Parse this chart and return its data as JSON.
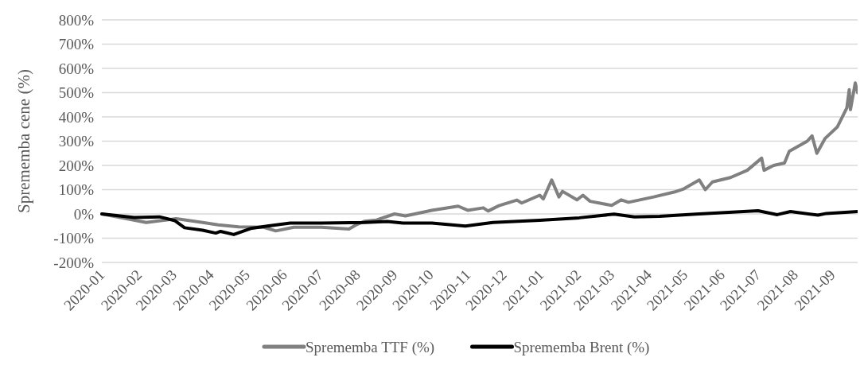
{
  "chart_data": {
    "type": "line",
    "ylabel": "Sprememba cene (%)",
    "xlim": [
      "2020-01-01",
      "2021-09-22"
    ],
    "xticks": [
      "2020-01",
      "2020-02",
      "2020-03",
      "2020-04",
      "2020-05",
      "2020-06",
      "2020-07",
      "2020-08",
      "2020-09",
      "2020-10",
      "2020-11",
      "2020-12",
      "2021-01",
      "2021-02",
      "2021-03",
      "2021-04",
      "2021-05",
      "2021-06",
      "2021-07",
      "2021-08",
      "2021-09"
    ],
    "ylim": [
      -200,
      800
    ],
    "yticks": [
      {
        "value": -200,
        "label": "-200%"
      },
      {
        "value": -100,
        "label": "-100%"
      },
      {
        "value": 0,
        "label": "0%"
      },
      {
        "value": 100,
        "label": "100%"
      },
      {
        "value": 200,
        "label": "200%"
      },
      {
        "value": 300,
        "label": "300%"
      },
      {
        "value": 400,
        "label": "400%"
      },
      {
        "value": 500,
        "label": "500%"
      },
      {
        "value": 600,
        "label": "600%"
      },
      {
        "value": 700,
        "label": "700%"
      },
      {
        "value": 800,
        "label": "800%"
      }
    ],
    "grid": "y",
    "legend": "bottom",
    "line_style": "solid",
    "marker": "none",
    "series": [
      {
        "name": "Sprememba TTF (%)",
        "color": "#808080",
        "x": [
          "2020-01-01",
          "2020-02-07",
          "2020-03-03",
          "2020-03-25",
          "2020-04-07",
          "2020-04-24",
          "2020-05-15",
          "2020-05-25",
          "2020-06-09",
          "2020-07-02",
          "2020-07-25",
          "2020-07-31",
          "2020-08-07",
          "2020-08-17",
          "2020-09-01",
          "2020-09-10",
          "2020-09-18",
          "2020-10-02",
          "2020-10-24",
          "2020-11-01",
          "2020-11-14",
          "2020-11-18",
          "2020-11-27",
          "2020-12-12",
          "2020-12-16",
          "2020-12-31",
          "2021-01-03",
          "2021-01-10",
          "2021-01-16",
          "2021-01-19",
          "2021-01-31",
          "2021-02-05",
          "2021-02-11",
          "2021-03-01",
          "2021-03-09",
          "2021-03-15",
          "2021-04-05",
          "2021-04-22",
          "2021-04-30",
          "2021-05-13",
          "2021-05-18",
          "2021-05-24",
          "2021-06-08",
          "2021-06-22",
          "2021-07-04",
          "2021-07-06",
          "2021-07-14",
          "2021-07-23",
          "2021-07-27",
          "2021-08-11",
          "2021-08-15",
          "2021-08-19",
          "2021-08-26",
          "2021-09-05",
          "2021-09-13",
          "2021-09-15",
          "2021-09-16",
          "2021-09-20",
          "2021-09-22"
        ],
        "values": [
          0,
          -35,
          -20,
          -35,
          -45,
          -53,
          -55,
          -70,
          -55,
          -55,
          -62,
          -45,
          -30,
          -25,
          0,
          -8,
          0,
          15,
          32,
          15,
          25,
          12,
          34,
          57,
          45,
          77,
          62,
          140,
          70,
          93,
          58,
          77,
          52,
          35,
          58,
          48,
          70,
          90,
          103,
          140,
          100,
          132,
          150,
          180,
          230,
          180,
          200,
          210,
          258,
          300,
          322,
          250,
          312,
          358,
          437,
          512,
          430,
          540,
          500
        ]
      },
      {
        "name": "Sprememba Brent (%)",
        "color": "#000000",
        "x": [
          "2020-01-01",
          "2020-01-28",
          "2020-02-18",
          "2020-03-02",
          "2020-03-10",
          "2020-03-25",
          "2020-04-05",
          "2020-04-09",
          "2020-04-20",
          "2020-05-04",
          "2020-05-18",
          "2020-06-06",
          "2020-07-02",
          "2020-08-07",
          "2020-08-26",
          "2020-09-08",
          "2020-10-02",
          "2020-10-30",
          "2020-11-22",
          "2020-12-31",
          "2021-02-02",
          "2021-03-03",
          "2021-03-20",
          "2021-04-10",
          "2021-05-10",
          "2021-07-01",
          "2021-07-17",
          "2021-07-28",
          "2021-08-20",
          "2021-08-27",
          "2021-09-22"
        ],
        "values": [
          0,
          -15,
          -12,
          -28,
          -57,
          -67,
          -79,
          -72,
          -85,
          -60,
          -50,
          -38,
          -38,
          -35,
          -31,
          -38,
          -38,
          -50,
          -35,
          -26,
          -16,
          -1,
          -12,
          -10,
          -1,
          13,
          -3,
          10,
          -5,
          2,
          10
        ]
      }
    ]
  }
}
